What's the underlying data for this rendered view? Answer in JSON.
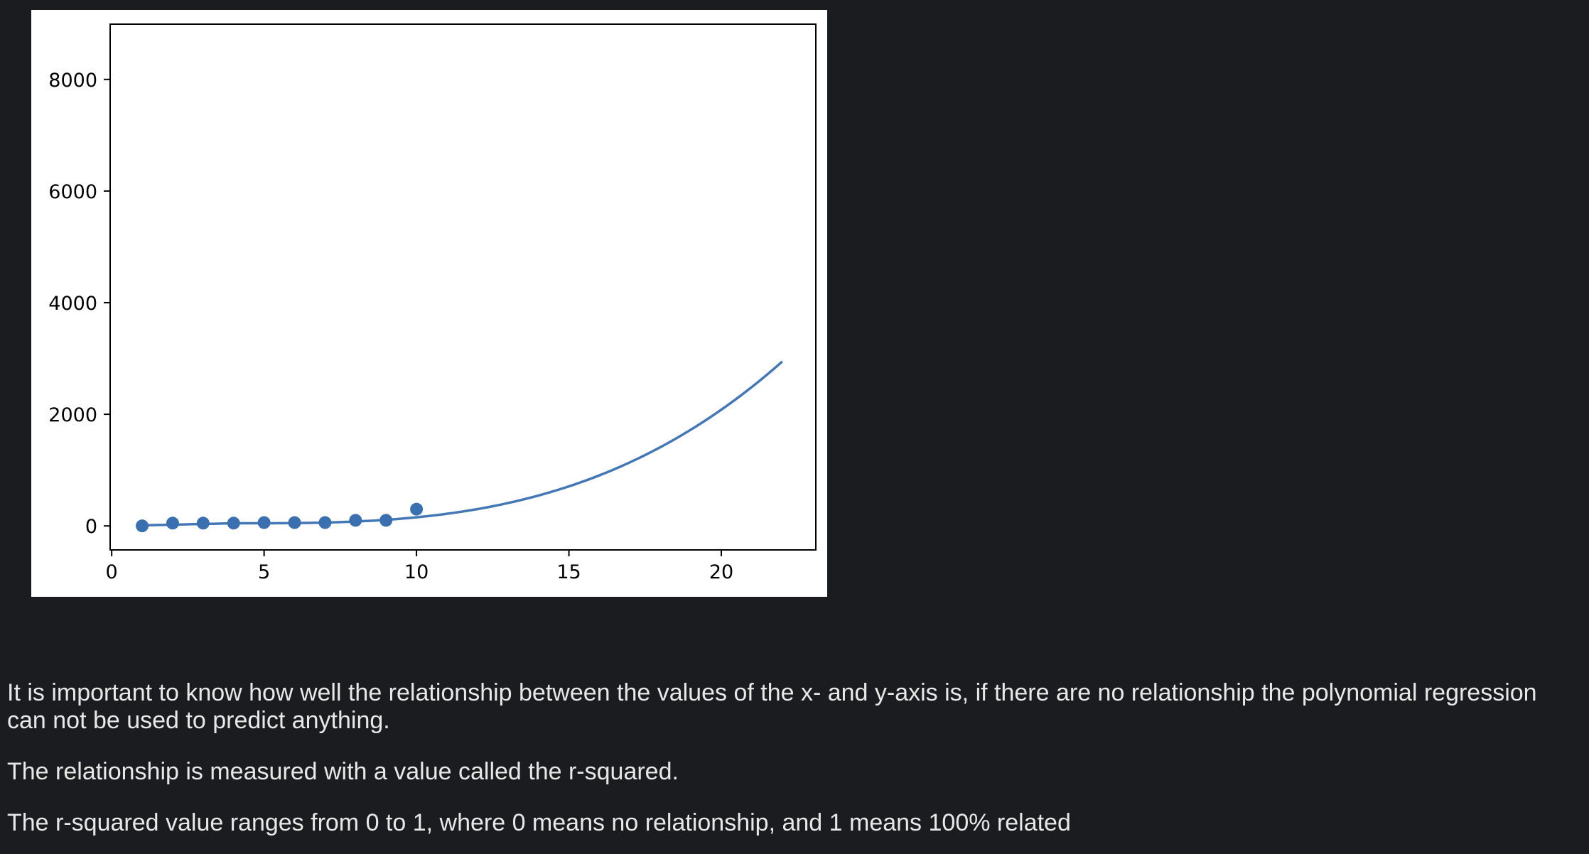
{
  "chart_data": {
    "type": "scatter",
    "title": "",
    "xlabel": "",
    "ylabel": "",
    "xlim": [
      -0.05,
      23.1
    ],
    "ylim": [
      -430,
      8990
    ],
    "xticks": [
      0,
      5,
      10,
      15,
      20
    ],
    "yticks": [
      0,
      2000,
      4000,
      6000,
      8000
    ],
    "x_tick_labels": [
      "0",
      "5",
      "10",
      "15",
      "20"
    ],
    "y_tick_labels": [
      "0",
      "2000",
      "4000",
      "6000",
      "8000"
    ],
    "grid": false,
    "series": [
      {
        "kind": "points",
        "x": [
          1,
          2,
          3,
          4,
          5,
          6,
          7,
          8,
          9,
          10
        ],
        "y": [
          1,
          50,
          50,
          50,
          60,
          60,
          60,
          100,
          100,
          300
        ],
        "color": "#3a70b0"
      },
      {
        "kind": "line",
        "x_range": [
          1,
          22
        ],
        "model": {
          "type": "cubic",
          "x0": 4,
          "a": 0.497,
          "c": 47,
          "applies_from": 4
        },
        "left_line": {
          "x": [
            1,
            4
          ],
          "y": [
            10,
            47
          ]
        },
        "color": "#4377b5"
      }
    ]
  },
  "text": {
    "paragraph1": "It is important to know how well the relationship between the values of the x- and y-axis is, if there are no relationship the polynomial regression can not be used to predict anything.",
    "paragraph2": "The relationship is measured with a value called the r-squared.",
    "paragraph3": "The r-squared value ranges from 0 to 1, where 0 means no relationship, and 1 means 100% related"
  }
}
